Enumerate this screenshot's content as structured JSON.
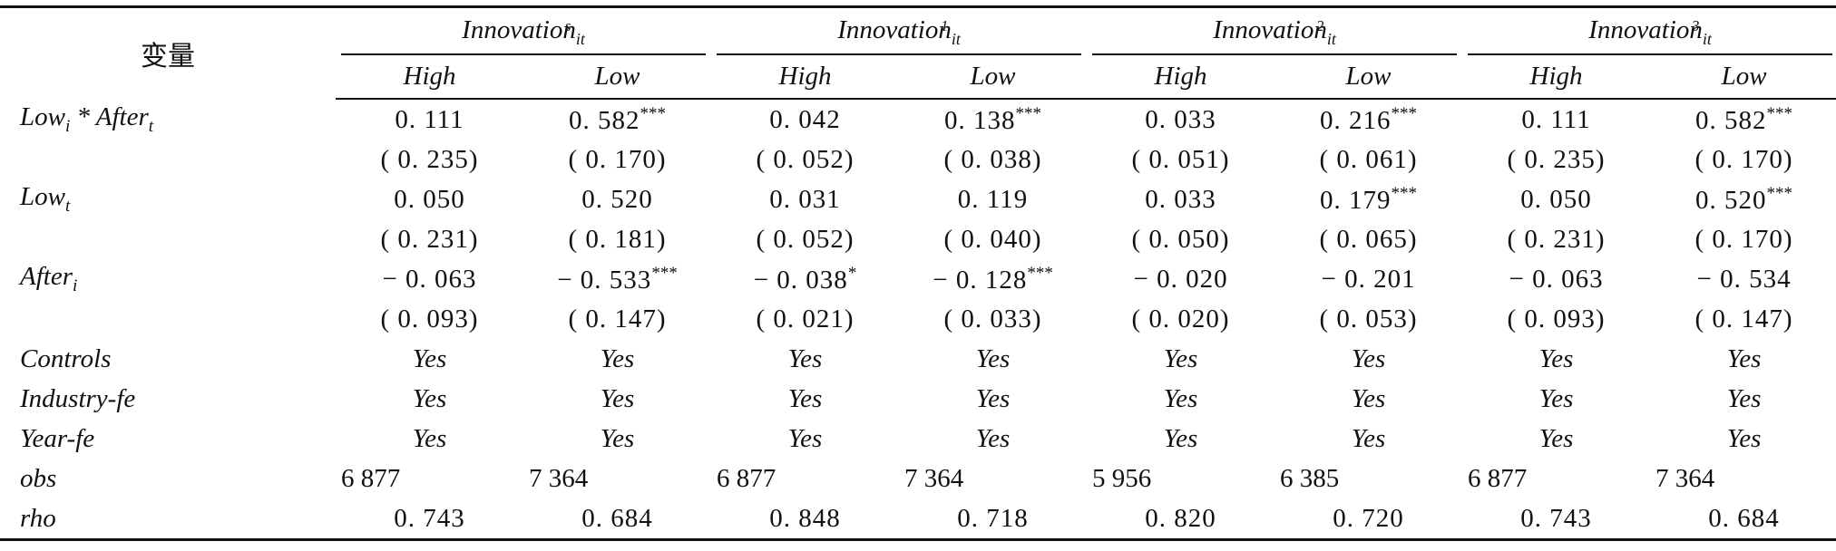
{
  "header": {
    "variable_label": "变量",
    "groups": [
      {
        "base": "Innovation",
        "sup": "s",
        "sub": "it"
      },
      {
        "base": "Innovation",
        "sup": "1",
        "sub": "it"
      },
      {
        "base": "Innovation",
        "sup": "2",
        "sub": "it"
      },
      {
        "base": "Innovation",
        "sup": "3",
        "sub": "it"
      }
    ],
    "subcolumns": [
      "High",
      "Low",
      "High",
      "Low",
      "High",
      "Low",
      "High",
      "Low"
    ]
  },
  "rows": [
    {
      "label": "Low",
      "label_sub": "i",
      "label_rest": " * After",
      "label_rest_sub": "t",
      "values": [
        "0. 111",
        "0. 582",
        "0. 042",
        "0. 138",
        "0. 033",
        "0. 216",
        "0. 111",
        "0. 582"
      ],
      "stars": [
        "",
        "***",
        "",
        "***",
        "",
        "***",
        "",
        "***"
      ]
    },
    {
      "label": "",
      "values": [
        "( 0. 235)",
        "( 0. 170)",
        "( 0. 052)",
        "( 0. 038)",
        "( 0. 051)",
        "( 0. 061)",
        "( 0. 235)",
        "( 0. 170)"
      ]
    },
    {
      "label": "Low",
      "label_sub": "t",
      "values": [
        "0. 050",
        "0. 520",
        "0. 031",
        "0. 119",
        "0. 033",
        "0. 179",
        "0. 050",
        "0. 520"
      ],
      "stars": [
        "",
        "",
        "",
        "",
        "",
        "***",
        "",
        "***"
      ]
    },
    {
      "label": "",
      "values": [
        "( 0. 231)",
        "( 0. 181)",
        "( 0. 052)",
        "( 0. 040)",
        "( 0. 050)",
        "( 0. 065)",
        "( 0. 231)",
        "( 0. 170)"
      ]
    },
    {
      "label": "After",
      "label_sub": "i",
      "values": [
        "− 0. 063",
        "− 0. 533",
        "− 0. 038",
        "− 0. 128",
        "− 0. 020",
        "− 0. 201",
        "− 0. 063",
        "− 0. 534"
      ],
      "stars": [
        "",
        "***",
        "*",
        "***",
        "",
        "",
        "",
        ""
      ]
    },
    {
      "label": "",
      "values": [
        "( 0. 093)",
        "( 0. 147)",
        "( 0. 021)",
        "( 0. 033)",
        "( 0. 020)",
        "( 0. 053)",
        "( 0. 093)",
        "( 0. 147)"
      ]
    }
  ],
  "yes_rows": [
    {
      "label": "Controls",
      "values": [
        "Yes",
        "Yes",
        "Yes",
        "Yes",
        "Yes",
        "Yes",
        "Yes",
        "Yes"
      ]
    },
    {
      "label": "Industry-fe",
      "values": [
        "Yes",
        "Yes",
        "Yes",
        "Yes",
        "Yes",
        "Yes",
        "Yes",
        "Yes"
      ]
    },
    {
      "label": "Year-fe",
      "values": [
        "Yes",
        "Yes",
        "Yes",
        "Yes",
        "Yes",
        "Yes",
        "Yes",
        "Yes"
      ]
    }
  ],
  "obs_row": {
    "label": "obs",
    "values": [
      "6 877",
      "7 364",
      "6 877",
      "7 364",
      "5 956",
      "6 385",
      "6 877",
      "7 364"
    ]
  },
  "rho_row": {
    "label": "rho",
    "values": [
      "0. 743",
      "0. 684",
      "0. 848",
      "0. 718",
      "0. 820",
      "0. 720",
      "0. 743",
      "0. 684"
    ]
  }
}
